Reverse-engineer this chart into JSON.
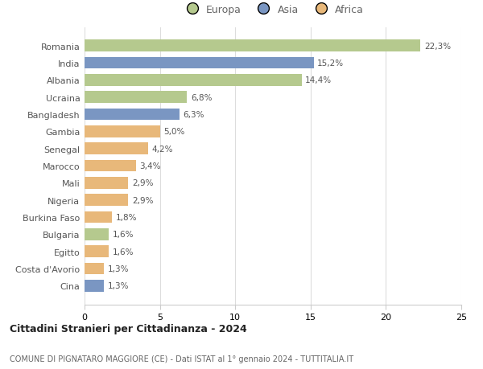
{
  "countries": [
    "Romania",
    "India",
    "Albania",
    "Ucraina",
    "Bangladesh",
    "Gambia",
    "Senegal",
    "Marocco",
    "Mali",
    "Nigeria",
    "Burkina Faso",
    "Bulgaria",
    "Egitto",
    "Costa d'Avorio",
    "Cina"
  ],
  "values": [
    22.3,
    15.2,
    14.4,
    6.8,
    6.3,
    5.0,
    4.2,
    3.4,
    2.9,
    2.9,
    1.8,
    1.6,
    1.6,
    1.3,
    1.3
  ],
  "labels": [
    "22,3%",
    "15,2%",
    "14,4%",
    "6,8%",
    "6,3%",
    "5,0%",
    "4,2%",
    "3,4%",
    "2,9%",
    "2,9%",
    "1,8%",
    "1,6%",
    "1,6%",
    "1,3%",
    "1,3%"
  ],
  "continents": [
    "Europa",
    "Asia",
    "Europa",
    "Europa",
    "Asia",
    "Africa",
    "Africa",
    "Africa",
    "Africa",
    "Africa",
    "Africa",
    "Europa",
    "Africa",
    "Africa",
    "Asia"
  ],
  "colors": {
    "Europa": "#b5c98e",
    "Asia": "#7a96c2",
    "Africa": "#e8b87a"
  },
  "legend_labels": [
    "Europa",
    "Asia",
    "Africa"
  ],
  "legend_colors": [
    "#b5c98e",
    "#7a96c2",
    "#e8b87a"
  ],
  "title1": "Cittadini Stranieri per Cittadinanza - 2024",
  "title2": "COMUNE DI PIGNATARO MAGGIORE (CE) - Dati ISTAT al 1° gennaio 2024 - TUTTITALIA.IT",
  "xlim": [
    0,
    25
  ],
  "xticks": [
    0,
    5,
    10,
    15,
    20,
    25
  ],
  "background_color": "#ffffff",
  "grid_color": "#dddddd"
}
